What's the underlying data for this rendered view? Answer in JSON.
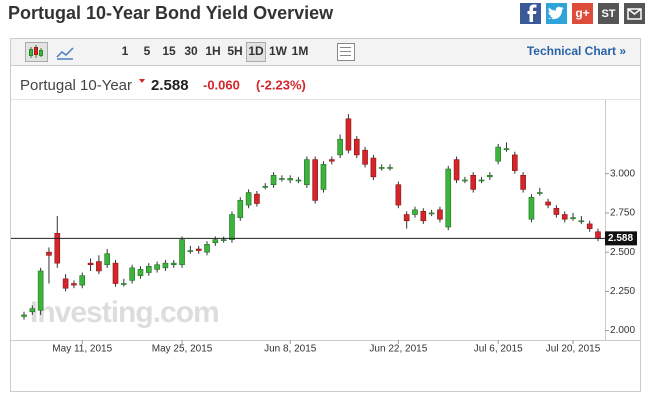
{
  "header": {
    "title": "Portugal 10-Year Bond Yield Overview",
    "social": [
      "g+",
      "ST"
    ]
  },
  "toolbar": {
    "intervals": [
      "1",
      "5",
      "15",
      "30",
      "1H",
      "5H",
      "1D",
      "1W",
      "1M"
    ],
    "active_index": 6,
    "link": "Technical Chart »"
  },
  "quote": {
    "name": "Portugal 10-Year",
    "last": "2.588",
    "change": "-0.060",
    "change_pct": "(-2.23%)"
  },
  "chart_data": {
    "type": "candlestick",
    "watermark": "Investing.com",
    "last": 2.588,
    "categories": [
      null,
      null,
      null,
      null,
      null,
      null,
      null,
      "May 11, 2015",
      null,
      null,
      null,
      null,
      null,
      null,
      null,
      null,
      null,
      null,
      null,
      "May 25, 2015",
      null,
      null,
      null,
      null,
      null,
      null,
      null,
      null,
      null,
      null,
      null,
      null,
      "Jun 8, 2015",
      null,
      null,
      null,
      null,
      null,
      null,
      null,
      null,
      null,
      null,
      null,
      null,
      "Jun 22, 2015",
      null,
      null,
      null,
      null,
      null,
      null,
      null,
      null,
      null,
      null,
      null,
      "Jul 6, 2015",
      null,
      null,
      null,
      null,
      null,
      null,
      null,
      null,
      "Jul 20, 2015",
      null,
      null,
      null
    ],
    "open": [
      2.09,
      2.12,
      2.13,
      2.5,
      2.62,
      2.33,
      2.3,
      2.29,
      2.43,
      2.44,
      2.42,
      2.43,
      2.3,
      2.32,
      2.35,
      2.37,
      2.39,
      2.4,
      2.42,
      2.42,
      2.51,
      2.52,
      2.5,
      2.56,
      2.58,
      2.58,
      2.72,
      2.8,
      2.87,
      2.92,
      2.93,
      2.97,
      2.96,
      2.96,
      2.93,
      3.09,
      2.9,
      3.09,
      3.12,
      3.35,
      3.22,
      3.15,
      3.1,
      3.04,
      3.04,
      2.93,
      2.74,
      2.74,
      2.76,
      2.75,
      2.77,
      2.66,
      3.09,
      2.96,
      2.99,
      2.96,
      2.98,
      3.08,
      3.16,
      3.12,
      2.99,
      2.71,
      2.88,
      2.82,
      2.78,
      2.74,
      2.72,
      2.7,
      2.68,
      2.63
    ],
    "high": [
      2.12,
      2.16,
      2.4,
      2.53,
      2.73,
      2.36,
      2.32,
      2.37,
      2.46,
      2.48,
      2.52,
      2.45,
      2.33,
      2.42,
      2.41,
      2.43,
      2.44,
      2.45,
      2.45,
      2.6,
      2.54,
      2.54,
      2.57,
      2.6,
      2.6,
      2.76,
      2.85,
      2.9,
      2.89,
      2.94,
      3.01,
      2.99,
      2.99,
      2.98,
      3.11,
      3.11,
      3.08,
      3.11,
      3.25,
      3.38,
      3.24,
      3.17,
      3.12,
      3.06,
      3.06,
      2.95,
      2.76,
      2.79,
      2.78,
      2.77,
      2.79,
      3.05,
      3.11,
      2.98,
      3.01,
      2.98,
      3.01,
      3.19,
      3.2,
      3.14,
      3.01,
      2.87,
      2.91,
      2.84,
      2.8,
      2.76,
      2.75,
      2.73,
      2.7,
      2.65
    ],
    "low": [
      2.07,
      2.1,
      2.1,
      2.3,
      2.4,
      2.25,
      2.27,
      2.27,
      2.38,
      2.36,
      2.4,
      2.28,
      2.28,
      2.3,
      2.33,
      2.35,
      2.37,
      2.38,
      2.4,
      2.4,
      2.49,
      2.49,
      2.48,
      2.54,
      2.56,
      2.56,
      2.7,
      2.78,
      2.79,
      2.9,
      2.91,
      2.95,
      2.94,
      2.94,
      2.91,
      2.81,
      2.88,
      3.06,
      3.1,
      3.13,
      3.1,
      3.04,
      2.96,
      3.02,
      3.02,
      2.78,
      2.65,
      2.72,
      2.68,
      2.73,
      2.69,
      2.64,
      2.94,
      2.94,
      2.88,
      2.94,
      2.96,
      3.06,
      3.14,
      3.0,
      2.88,
      2.69,
      2.86,
      2.78,
      2.72,
      2.69,
      2.7,
      2.68,
      2.63,
      2.57
    ],
    "close": [
      2.1,
      2.14,
      2.38,
      2.48,
      2.43,
      2.27,
      2.29,
      2.35,
      2.42,
      2.38,
      2.49,
      2.3,
      2.3,
      2.4,
      2.39,
      2.41,
      2.42,
      2.43,
      2.43,
      2.58,
      2.51,
      2.51,
      2.55,
      2.58,
      2.58,
      2.74,
      2.83,
      2.88,
      2.81,
      2.92,
      2.99,
      2.97,
      2.97,
      2.96,
      3.09,
      2.83,
      3.06,
      3.08,
      3.22,
      3.15,
      3.12,
      3.06,
      2.98,
      3.04,
      3.04,
      2.8,
      2.7,
      2.77,
      2.7,
      2.75,
      2.71,
      3.03,
      2.96,
      2.96,
      2.9,
      2.96,
      2.99,
      3.17,
      3.16,
      3.02,
      2.9,
      2.85,
      2.88,
      2.8,
      2.74,
      2.71,
      2.72,
      2.7,
      2.65,
      2.588
    ],
    "up_color": "#3cb43c",
    "down_color": "#d3262b",
    "ylim": [
      1.94,
      3.47
    ],
    "yticks": [
      {
        "value": 2,
        "label": "2.000"
      },
      {
        "value": 2.25,
        "label": "2.250"
      },
      {
        "value": 2.5,
        "label": "2.500"
      },
      {
        "value": 2.75,
        "label": "2.750"
      },
      {
        "value": 3,
        "label": "3.000"
      }
    ]
  }
}
